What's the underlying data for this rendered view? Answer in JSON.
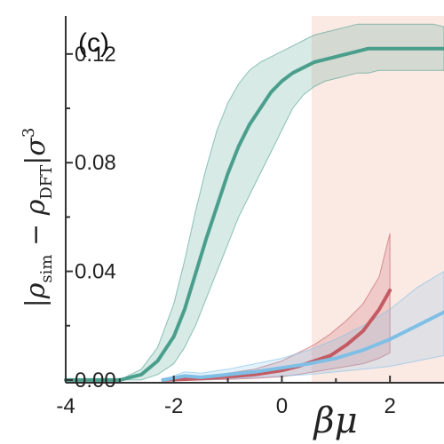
{
  "chart_data": {
    "type": "line",
    "panel_label": "(c)",
    "xlabel": "βμ",
    "ylabel": "|ρsim − ρDFT|σ³",
    "xlim": [
      -4,
      3
    ],
    "ylim": [
      -0.001,
      0.134
    ],
    "x_ticks": [
      -4,
      -2,
      0,
      2
    ],
    "x_tick_labels": [
      "-4",
      "-2",
      "0",
      "2"
    ],
    "x_minor_ticks": [
      -3,
      -1,
      1
    ],
    "y_ticks": [
      0.0,
      0.04,
      0.08,
      0.12
    ],
    "y_tick_labels": [
      "0.00",
      "0.04",
      "0.08",
      "0.12"
    ],
    "y_minor_ticks": [
      0.02,
      0.06,
      0.1
    ],
    "shaded_region": {
      "x_start": 0.55,
      "x_end": 3,
      "color": "#fbe9e4"
    },
    "series": [
      {
        "color": "#4a9e8c",
        "x": [
          -4,
          -3.5,
          -3,
          -2.6,
          -2.3,
          -2.0,
          -1.8,
          -1.6,
          -1.4,
          -1.2,
          -1.0,
          -0.8,
          -0.6,
          -0.4,
          -0.2,
          0.0,
          0.2,
          0.4,
          0.6,
          0.8,
          1.0,
          1.2,
          1.4,
          1.6,
          1.8,
          2.0,
          2.4,
          2.8,
          3.0
        ],
        "y": [
          0.0,
          0.0,
          0.0,
          0.002,
          0.007,
          0.016,
          0.026,
          0.039,
          0.052,
          0.064,
          0.076,
          0.086,
          0.094,
          0.1,
          0.106,
          0.11,
          0.113,
          0.115,
          0.117,
          0.118,
          0.119,
          0.12,
          0.121,
          0.122,
          0.122,
          0.122,
          0.122,
          0.122,
          0.122
        ],
        "lower": [
          0.0,
          0.0,
          0.0,
          0.0,
          0.002,
          0.006,
          0.012,
          0.02,
          0.03,
          0.04,
          0.05,
          0.06,
          0.068,
          0.076,
          0.084,
          0.092,
          0.1,
          0.105,
          0.108,
          0.11,
          0.111,
          0.112,
          0.113,
          0.113,
          0.114,
          0.114,
          0.114,
          0.114,
          0.114
        ],
        "upper": [
          0.0,
          0.0,
          0.0,
          0.004,
          0.012,
          0.028,
          0.044,
          0.062,
          0.078,
          0.092,
          0.102,
          0.109,
          0.114,
          0.117,
          0.119,
          0.121,
          0.123,
          0.125,
          0.127,
          0.128,
          0.129,
          0.13,
          0.131,
          0.131,
          0.131,
          0.131,
          0.131,
          0.131,
          0.13
        ]
      },
      {
        "color": "#c45a62",
        "x": [
          -2.2,
          -1.5,
          -1.0,
          -0.5,
          0.0,
          0.3,
          0.6,
          0.9,
          1.2,
          1.5,
          1.8,
          2.0
        ],
        "y": [
          0.0,
          0.0005,
          0.0012,
          0.002,
          0.0035,
          0.005,
          0.007,
          0.009,
          0.013,
          0.018,
          0.026,
          0.033
        ],
        "lower": [
          0.0,
          0.0,
          0.0002,
          0.0006,
          0.0012,
          0.002,
          0.003,
          0.004,
          0.005,
          0.006,
          0.008,
          0.01
        ],
        "upper": [
          0.0,
          0.001,
          0.0025,
          0.004,
          0.007,
          0.01,
          0.013,
          0.017,
          0.022,
          0.028,
          0.038,
          0.054
        ]
      },
      {
        "color": "#7fbfe6",
        "x": [
          -2.2,
          -1.8,
          -1.5,
          -1.0,
          -0.5,
          0.0,
          0.5,
          1.0,
          1.5,
          2.0,
          2.5,
          3.0
        ],
        "y": [
          0.0,
          0.0015,
          0.001,
          0.002,
          0.003,
          0.0045,
          0.006,
          0.008,
          0.011,
          0.015,
          0.02,
          0.025
        ],
        "lower": [
          0.0,
          0.0,
          0.0,
          0.0005,
          0.001,
          0.0015,
          0.002,
          0.003,
          0.004,
          0.005,
          0.007,
          0.009
        ],
        "upper": [
          0.0,
          0.003,
          0.0025,
          0.004,
          0.006,
          0.008,
          0.011,
          0.015,
          0.02,
          0.026,
          0.034,
          0.04
        ]
      }
    ]
  }
}
